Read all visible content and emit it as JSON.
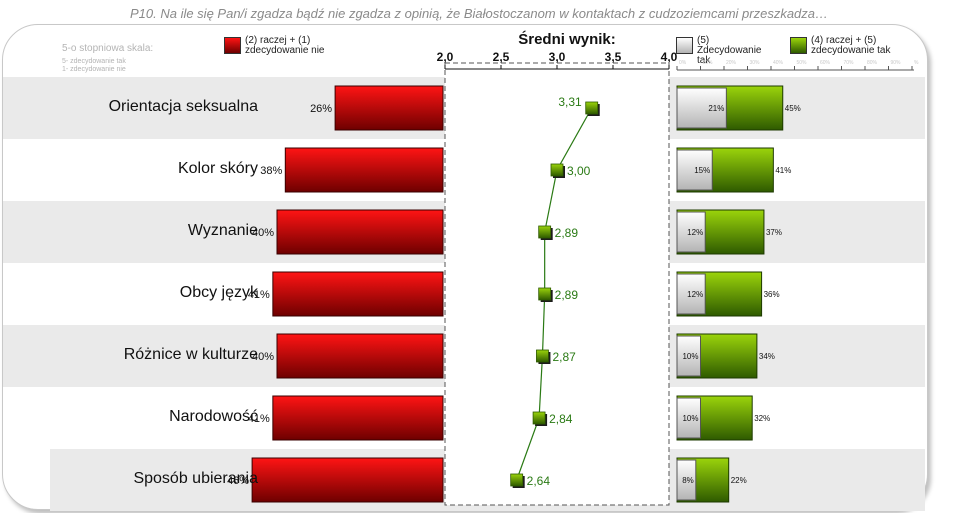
{
  "title": "P10. Na ile się Pan/i zgadza bądź nie zgadza z opinią, że Białostoczanom w kontaktach z cudzoziemcami przeszkadza…",
  "scale_note": {
    "title": "5-o stopniowa skala:",
    "line1": "5- zdecydowanie tak",
    "line2": "1- zdecydowanie nie"
  },
  "legend": {
    "disagree": "(2) raczej + (1) zdecydowanie nie",
    "strongly_agree": "(5) Zdecydowanie tak",
    "agree": "(4) raczej + (5) zdecydowanie tak"
  },
  "colors": {
    "disagree_light": "#ff1414",
    "disagree_dark": "#6e0000",
    "agree_light": "#9bd40b",
    "agree_dark": "#2e5a00",
    "strong_light": "#ffffff",
    "strong_dark": "#b4b4b4",
    "mean_line": "#2a7a14",
    "mean_label": "#2a7a14",
    "stripe": "#eaeaea"
  },
  "chart_data": {
    "type": "bar",
    "title": "Średni wynik:",
    "categories": [
      "Orientacja seksualna",
      "Kolor skóry",
      "Wyznanie",
      "Obcy język",
      "Różnice w kulturze",
      "Narodowość",
      "Sposób ubierania"
    ],
    "series": [
      {
        "name": "(2) raczej + (1) zdecydowanie nie",
        "values": [
          26,
          38,
          40,
          41,
          40,
          41,
          46
        ],
        "labels": [
          "26%",
          "38%",
          "40%",
          "41%",
          "40%",
          "41%",
          "46%"
        ]
      },
      {
        "name": "(5) Zdecydowanie tak",
        "values": [
          21,
          15,
          12,
          12,
          10,
          10,
          8
        ],
        "labels": [
          "21%",
          "15%",
          "12%",
          "12%",
          "10%",
          "10%",
          "8%"
        ]
      },
      {
        "name": "(4) raczej + (5) zdecydowanie tak",
        "values": [
          45,
          41,
          37,
          36,
          34,
          32,
          22
        ],
        "labels": [
          "45%",
          "41%",
          "37%",
          "36%",
          "34%",
          "32%",
          "22%"
        ]
      }
    ],
    "mean": {
      "values": [
        3.31,
        3.0,
        2.89,
        2.89,
        2.87,
        2.84,
        2.64
      ],
      "labels": [
        "3,31",
        "3,00",
        "2,89",
        "2,89",
        "2,87",
        "2,84",
        "2,64"
      ],
      "xlim": [
        2.0,
        4.0
      ],
      "ticks": [
        "2,0",
        "2,5",
        "3,0",
        "3,5",
        "4,0"
      ]
    },
    "right_axis_ticks": [
      "0%",
      "10%",
      "20%",
      "30%",
      "40%",
      "50%",
      "60%",
      "70%",
      "80%",
      "90%",
      "%"
    ]
  }
}
